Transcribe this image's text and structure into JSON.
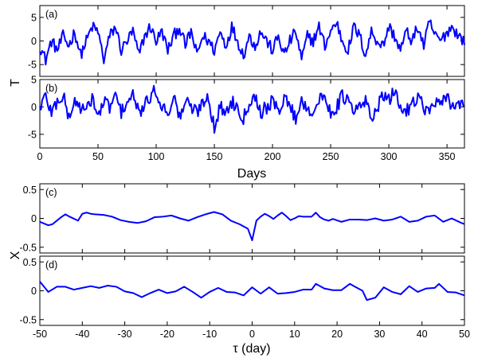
{
  "figure": {
    "top_group": {
      "ylabel": "T",
      "xlabel": "Days"
    },
    "bottom_group": {
      "ylabel": "X",
      "xlabel": "τ (day)"
    }
  },
  "chart_data": [
    {
      "id": "a",
      "panel_label": "(a)",
      "type": "line",
      "xlim": [
        0,
        365
      ],
      "ylim": [
        -7.5,
        7.5
      ],
      "yticks": [
        -5,
        0,
        5
      ],
      "ytick_labels": [
        "-5",
        "0",
        "5"
      ],
      "xticks": [
        0,
        50,
        100,
        150,
        200,
        250,
        300,
        350
      ],
      "xtick_labels": [],
      "series": [
        {
          "name": "T (a)",
          "color": "#0000ff",
          "x": [],
          "y": []
        }
      ],
      "data_description": "Daily series over 365 days, oscillating roughly between -5 and 4.5 (sampled below every 5 days)",
      "x_sampled": [
        0,
        5,
        10,
        15,
        20,
        25,
        30,
        35,
        40,
        45,
        50,
        55,
        60,
        65,
        70,
        75,
        80,
        85,
        90,
        95,
        100,
        105,
        110,
        115,
        120,
        125,
        130,
        135,
        140,
        145,
        150,
        155,
        160,
        165,
        170,
        175,
        180,
        185,
        190,
        195,
        200,
        205,
        210,
        215,
        220,
        225,
        230,
        235,
        240,
        245,
        250,
        255,
        260,
        265,
        270,
        275,
        280,
        285,
        290,
        295,
        300,
        305,
        310,
        315,
        320,
        325,
        330,
        335,
        340,
        345,
        350,
        355,
        360,
        365
      ],
      "y_sampled": [
        -1,
        -4,
        0,
        -2,
        1,
        -1,
        2,
        -3,
        0,
        3,
        2,
        -4,
        1,
        3,
        -2,
        0,
        2,
        -3,
        1,
        3,
        0,
        2,
        -2,
        1,
        3,
        -1,
        2,
        -3,
        1,
        0,
        -2,
        2,
        -1,
        3,
        0,
        -3,
        1,
        -1,
        2,
        0,
        -2,
        1,
        -3,
        0,
        2,
        -4,
        1,
        0,
        3,
        -1,
        2,
        4,
        0,
        -2,
        3,
        1,
        -3,
        2,
        0,
        -1,
        3,
        1,
        -2,
        2,
        0,
        3,
        -1,
        4,
        1,
        0,
        2,
        3,
        1,
        0
      ]
    },
    {
      "id": "b",
      "panel_label": "(b)",
      "type": "line",
      "xlim": [
        0,
        365
      ],
      "ylim": [
        -7.5,
        5
      ],
      "yticks": [
        -5,
        0,
        5
      ],
      "ytick_labels": [
        "-5",
        "0",
        "5"
      ],
      "xticks": [
        0,
        50,
        100,
        150,
        200,
        250,
        300,
        350
      ],
      "xtick_labels": [
        "0",
        "50",
        "100",
        "150",
        "200",
        "250",
        "300",
        "350"
      ],
      "xlabel": "Days",
      "series": [
        {
          "name": "T (b)",
          "color": "#0000ff"
        }
      ],
      "x_sampled": [
        0,
        5,
        10,
        15,
        20,
        25,
        30,
        35,
        40,
        45,
        50,
        55,
        60,
        65,
        70,
        75,
        80,
        85,
        90,
        95,
        100,
        105,
        110,
        115,
        120,
        125,
        130,
        135,
        140,
        145,
        150,
        155,
        160,
        165,
        170,
        175,
        180,
        185,
        190,
        195,
        200,
        205,
        210,
        215,
        220,
        225,
        230,
        235,
        240,
        245,
        250,
        255,
        260,
        265,
        270,
        275,
        280,
        285,
        290,
        295,
        300,
        305,
        310,
        315,
        320,
        325,
        330,
        335,
        340,
        345,
        350,
        355,
        360,
        365
      ],
      "y_sampled": [
        0,
        2,
        -1,
        1,
        2,
        -2,
        1,
        0,
        -1,
        2,
        -2,
        1,
        0,
        2,
        -1,
        1,
        2,
        -1,
        0,
        2,
        3,
        0,
        -1,
        2,
        -2,
        1,
        0,
        -1,
        1,
        2,
        -4,
        0,
        -1,
        1,
        0,
        -2,
        1,
        2,
        -1,
        0,
        1,
        -1,
        2,
        0,
        -2,
        1,
        0,
        -1,
        1,
        2,
        -1,
        0,
        2,
        1,
        -1,
        0,
        1,
        -2,
        0,
        2,
        1,
        3,
        0,
        -1,
        1,
        2,
        0,
        -1,
        1,
        0,
        2,
        0,
        1,
        0
      ]
    },
    {
      "id": "c",
      "panel_label": "(c)",
      "type": "line",
      "xlim": [
        -50,
        50
      ],
      "ylim": [
        -0.6,
        0.6
      ],
      "yticks": [
        -0.5,
        0,
        0.5
      ],
      "ytick_labels": [
        "-0.5",
        "0",
        "0.5"
      ],
      "xticks": [
        -50,
        -40,
        -30,
        -20,
        -10,
        0,
        10,
        20,
        30,
        40,
        50
      ],
      "xtick_labels": [],
      "series": [
        {
          "name": "X (c)",
          "color": "#0000ff",
          "x": [
            -50,
            -48,
            -47,
            -45,
            -44,
            -43,
            -41,
            -40,
            -39,
            -38,
            -37,
            -35,
            -33,
            -31,
            -29,
            -27,
            -25,
            -23,
            -21,
            -19,
            -17,
            -15,
            -13,
            -11,
            -9,
            -7,
            -5,
            -3,
            -1,
            0,
            1,
            2,
            3,
            4,
            5,
            6,
            7,
            8,
            9,
            10,
            11,
            12,
            13,
            14,
            15,
            16,
            17,
            18,
            19,
            21,
            23,
            25,
            27,
            29,
            31,
            33,
            35,
            37,
            39,
            41,
            43,
            45,
            47,
            49,
            50
          ],
          "y": [
            -0.06,
            -0.12,
            -0.1,
            0.02,
            0.07,
            0.03,
            -0.04,
            0.08,
            0.1,
            0.08,
            0.07,
            0.06,
            0.03,
            -0.03,
            -0.06,
            -0.08,
            -0.05,
            0.02,
            0.03,
            0.05,
            0.0,
            -0.04,
            0.02,
            0.07,
            0.11,
            0.07,
            -0.04,
            -0.1,
            -0.18,
            -0.38,
            -0.04,
            0.03,
            0.08,
            0.04,
            -0.01,
            0.05,
            0.1,
            0.04,
            -0.03,
            0.0,
            0.04,
            0.03,
            0.03,
            0.03,
            0.1,
            0.02,
            -0.02,
            -0.04,
            -0.01,
            -0.06,
            -0.02,
            -0.02,
            -0.03,
            0.0,
            -0.04,
            -0.02,
            0.03,
            -0.06,
            -0.04,
            0.03,
            0.05,
            -0.06,
            0.0,
            -0.07,
            -0.1
          ]
        }
      ]
    },
    {
      "id": "d",
      "panel_label": "(d)",
      "type": "line",
      "xlim": [
        -50,
        50
      ],
      "ylim": [
        -0.6,
        0.6
      ],
      "yticks": [
        -0.5,
        0,
        0.5
      ],
      "ytick_labels": [
        "-0.5",
        "0",
        "0.5"
      ],
      "xticks": [
        -50,
        -40,
        -30,
        -20,
        -10,
        0,
        10,
        20,
        30,
        40,
        50
      ],
      "xtick_labels": [
        "-50",
        "-40",
        "-30",
        "-20",
        "-10",
        "0",
        "10",
        "20",
        "30",
        "40",
        "50"
      ],
      "xlabel": "τ (day)",
      "series": [
        {
          "name": "X (d)",
          "color": "#0000ff",
          "x": [
            -50,
            -48,
            -46,
            -44,
            -42,
            -40,
            -38,
            -36,
            -34,
            -32,
            -30,
            -28,
            -26,
            -24,
            -22,
            -20,
            -18,
            -16,
            -14,
            -12,
            -10,
            -8,
            -6,
            -4,
            -2,
            0,
            2,
            4,
            6,
            8,
            10,
            12,
            14,
            15,
            17,
            19,
            21,
            23,
            24,
            26,
            27,
            29,
            31,
            33,
            35,
            37,
            39,
            41,
            43,
            44,
            46,
            48,
            50
          ],
          "y": [
            0.16,
            -0.02,
            0.07,
            0.07,
            0.02,
            0.05,
            0.08,
            0.05,
            0.09,
            0.07,
            -0.01,
            -0.04,
            -0.11,
            -0.04,
            0.02,
            -0.04,
            -0.01,
            0.07,
            -0.02,
            -0.12,
            -0.02,
            0.05,
            -0.02,
            -0.03,
            -0.08,
            0.06,
            -0.05,
            0.06,
            -0.05,
            -0.04,
            -0.02,
            0.02,
            0.02,
            0.12,
            0.04,
            0.01,
            0.01,
            0.12,
            0.08,
            0.0,
            -0.16,
            -0.12,
            0.06,
            -0.02,
            -0.06,
            0.08,
            -0.02,
            0.04,
            0.05,
            0.12,
            -0.02,
            -0.03,
            -0.08
          ]
        }
      ]
    }
  ]
}
